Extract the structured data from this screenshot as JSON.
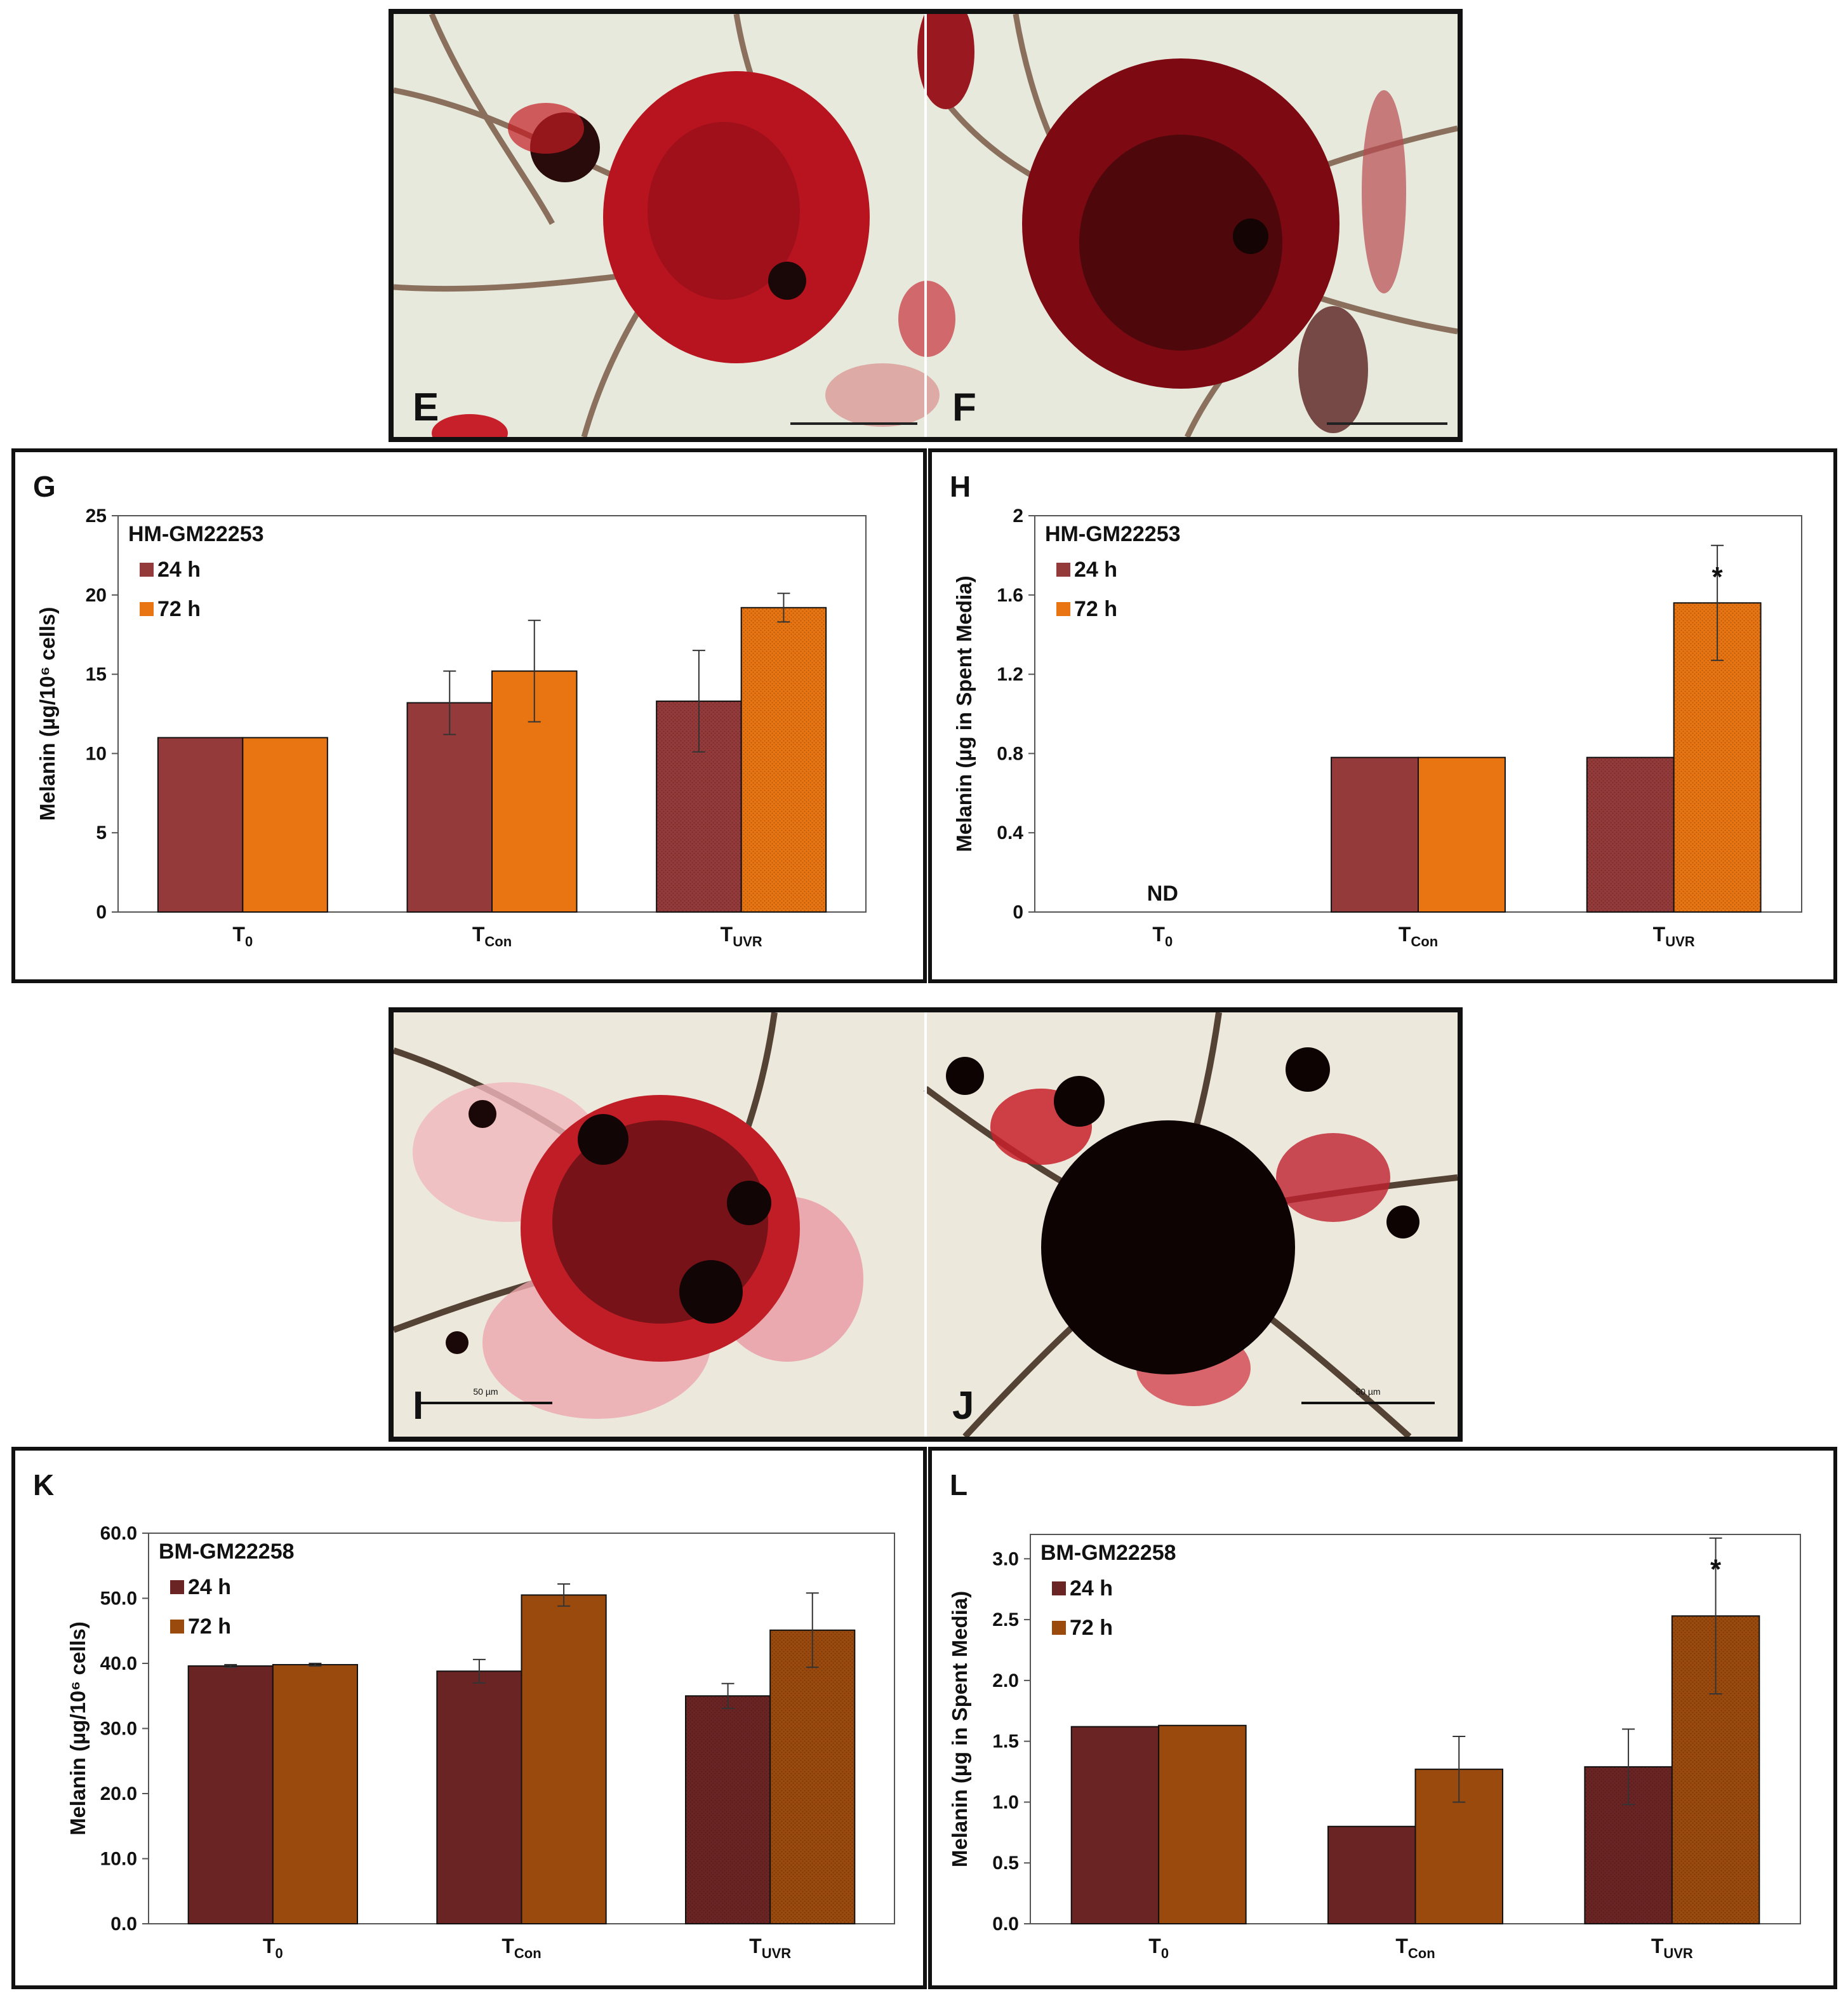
{
  "images": {
    "top": {
      "left_letter": "E",
      "right_letter": "F"
    },
    "bottom": {
      "left_letter": "I",
      "right_letter": "J",
      "scale_label": "50 µm"
    }
  },
  "colors": {
    "hm_24h": "#953a3a",
    "hm_72h": "#e87512",
    "bm_24h": "#6b2424",
    "bm_72h": "#9b4a0e",
    "stain_red": "#c8202a",
    "background_beige": "#e9ece0"
  },
  "chart_data": [
    {
      "id": "G",
      "type": "bar",
      "letter": "G",
      "legend_title": "HM-GM22253",
      "categories": [
        {
          "base": "T",
          "sub": "0"
        },
        {
          "base": "T",
          "sub": "Con"
        },
        {
          "base": "T",
          "sub": "UVR"
        }
      ],
      "ylabel": "Melanin (µg/10⁶ cells)",
      "ylim": [
        0,
        25
      ],
      "yticks": [
        "0",
        "5",
        "10",
        "15",
        "20",
        "25"
      ],
      "ytick_values": [
        0,
        5,
        10,
        15,
        20,
        25
      ],
      "series": [
        {
          "name": "24 h",
          "values": [
            11.0,
            13.2,
            13.3
          ],
          "errors": [
            0,
            2.0,
            3.2
          ]
        },
        {
          "name": "72 h",
          "values": [
            11.0,
            15.2,
            19.2
          ],
          "errors": [
            0,
            3.2,
            0.9
          ]
        }
      ],
      "annotations": []
    },
    {
      "id": "H",
      "type": "bar",
      "letter": "H",
      "legend_title": "HM-GM22253",
      "categories": [
        {
          "base": "T",
          "sub": "0"
        },
        {
          "base": "T",
          "sub": "Con"
        },
        {
          "base": "T",
          "sub": "UVR"
        }
      ],
      "ylabel": "Melanin (µg in Spent Media)",
      "ylim": [
        0,
        2
      ],
      "yticks": [
        "0",
        "0.4",
        "0.8",
        "1.2",
        "1.6",
        "2"
      ],
      "ytick_values": [
        0,
        0.4,
        0.8,
        1.2,
        1.6,
        2
      ],
      "series": [
        {
          "name": "24 h",
          "values": [
            0,
            0.78,
            0.78
          ],
          "errors": [
            0,
            0,
            0
          ]
        },
        {
          "name": "72 h",
          "values": [
            0,
            0.78,
            1.56
          ],
          "errors": [
            0,
            0,
            0.29
          ]
        }
      ],
      "annotations": [
        {
          "category_index": 0,
          "text": "ND"
        },
        {
          "category_index": 2,
          "series_index": 1,
          "text": "*"
        }
      ]
    },
    {
      "id": "K",
      "type": "bar",
      "letter": "K",
      "legend_title": "BM-GM22258",
      "categories": [
        {
          "base": "T",
          "sub": "0"
        },
        {
          "base": "T",
          "sub": "Con"
        },
        {
          "base": "T",
          "sub": "UVR"
        }
      ],
      "ylabel": "Melanin (µg/10⁶ cells)",
      "ylim": [
        0,
        60
      ],
      "yticks": [
        "0.0",
        "10.0",
        "20.0",
        "30.0",
        "40.0",
        "50.0",
        "60.0"
      ],
      "ytick_values": [
        0,
        10,
        20,
        30,
        40,
        50,
        60
      ],
      "series": [
        {
          "name": "24 h",
          "values": [
            39.6,
            38.8,
            35.0
          ],
          "errors": [
            0.2,
            1.8,
            1.9
          ]
        },
        {
          "name": "72 h",
          "values": [
            39.8,
            50.5,
            45.1
          ],
          "errors": [
            0.2,
            1.7,
            5.7
          ]
        }
      ],
      "annotations": []
    },
    {
      "id": "L",
      "type": "bar",
      "letter": "L",
      "legend_title": "BM-GM22258",
      "categories": [
        {
          "base": "T",
          "sub": "0"
        },
        {
          "base": "T",
          "sub": "Con"
        },
        {
          "base": "T",
          "sub": "UVR"
        }
      ],
      "ylabel": "Melanin (µg in Spent Media)",
      "ylim": [
        0,
        3.2
      ],
      "yticks": [
        "0.0",
        "0.5",
        "1.0",
        "1.5",
        "2.0",
        "2.5",
        "3.0"
      ],
      "ytick_values": [
        0,
        0.5,
        1.0,
        1.5,
        2.0,
        2.5,
        3.0
      ],
      "series": [
        {
          "name": "24 h",
          "values": [
            1.62,
            0.8,
            1.29
          ],
          "errors": [
            0,
            0,
            0.31
          ]
        },
        {
          "name": "72 h",
          "values": [
            1.63,
            1.27,
            2.53
          ],
          "errors": [
            0,
            0.27,
            0.64
          ]
        }
      ],
      "annotations": [
        {
          "category_index": 2,
          "series_index": 1,
          "text": "*"
        }
      ]
    }
  ]
}
